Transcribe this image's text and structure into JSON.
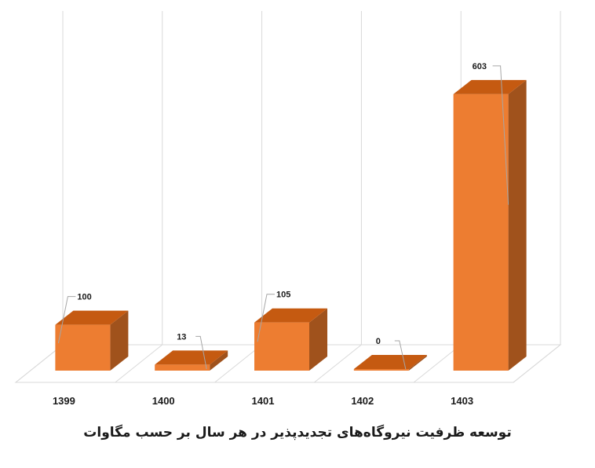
{
  "chart_data": {
    "type": "bar",
    "style": "3d-column",
    "title": "توسعه ظرفیت نیروگاه‌های تجدیدپذیر در هر سال بر حسب مگاوات",
    "categories": [
      "1399",
      "1400",
      "1401",
      "1402",
      "1403"
    ],
    "values": [
      100,
      13,
      105,
      0,
      603
    ],
    "data_labels": [
      "100",
      "13",
      "105",
      "0",
      "603"
    ],
    "ylim": [
      0,
      620
    ],
    "grid": true,
    "legend": "none",
    "colors": {
      "bar_front": "#ED7D31",
      "bar_top": "#C55A11",
      "bar_side": "#A0521C",
      "grid": "#D9D9D9",
      "leader": "#A6A6A6"
    }
  }
}
